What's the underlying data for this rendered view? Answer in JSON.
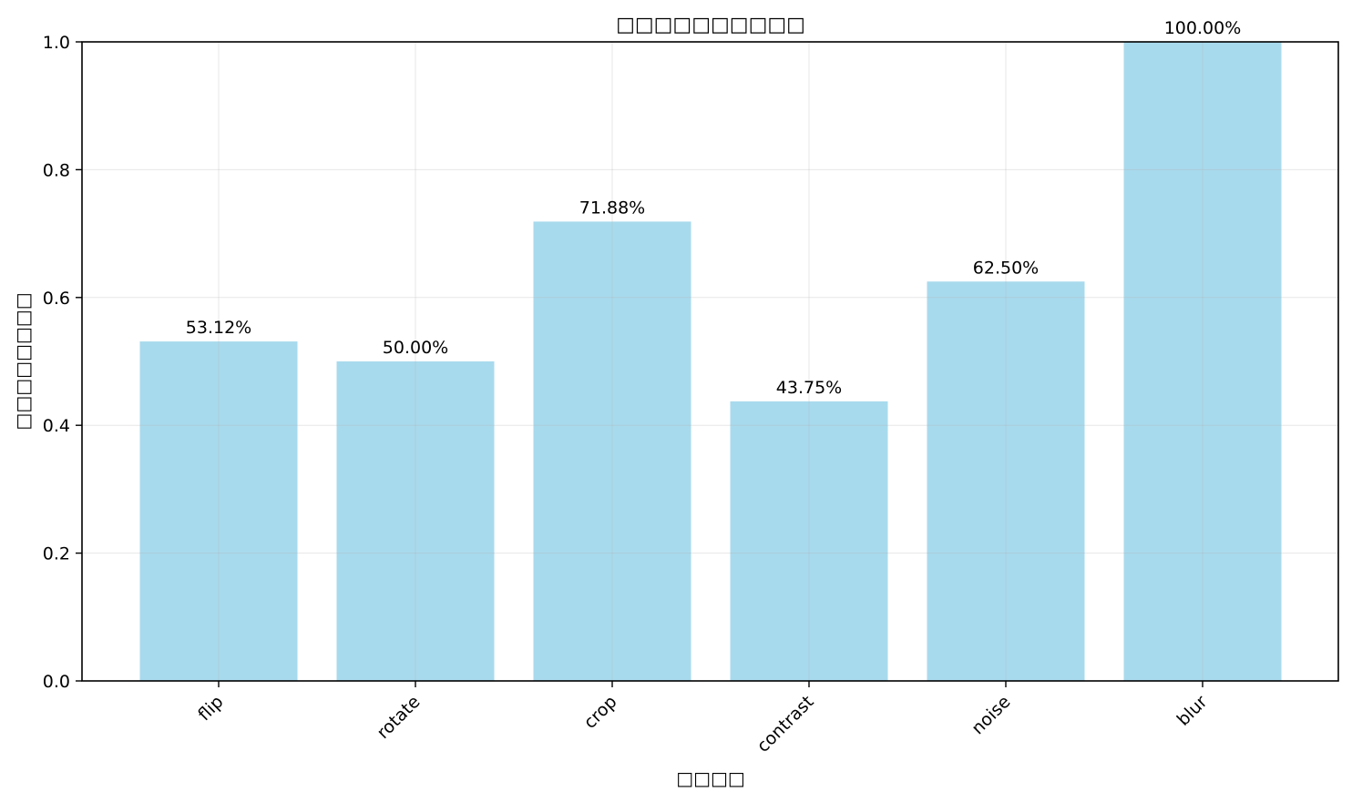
{
  "chart_data": {
    "type": "bar",
    "title": "□□□□□□□□□□",
    "xlabel": "□□□□",
    "ylabel": "□□□□□□□□",
    "categories": [
      "flip",
      "rotate",
      "crop",
      "contrast",
      "noise",
      "blur"
    ],
    "values": [
      0.5312,
      0.5,
      0.7188,
      0.4375,
      0.625,
      1.0
    ],
    "value_labels": [
      "53.12%",
      "50.00%",
      "71.88%",
      "43.75%",
      "62.50%",
      "100.00%"
    ],
    "ylim": [
      0,
      1.0
    ],
    "yticks": [
      "0.0",
      "0.2",
      "0.4",
      "0.6",
      "0.8",
      "1.0"
    ],
    "grid": true,
    "legend": "none",
    "bar_color": "#a8daed",
    "grid_color": "#e6e6e6"
  }
}
